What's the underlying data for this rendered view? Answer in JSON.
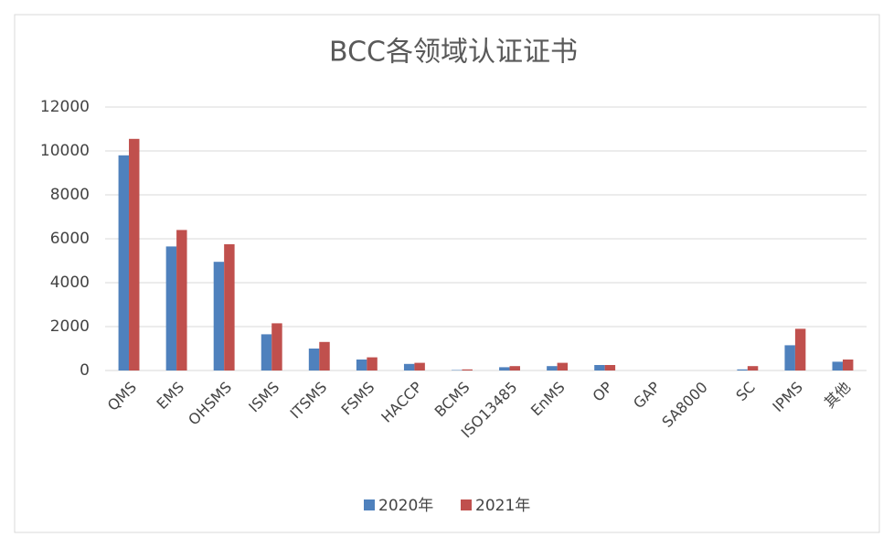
{
  "chart_data": {
    "type": "bar",
    "title": "BCC各领域认证证书",
    "categories": [
      "QMS",
      "EMS",
      "OHSMS",
      "ISMS",
      "ITSMS",
      "FSMS",
      "HACCP",
      "BCMS",
      "ISO13485",
      "EnMS",
      "OP",
      "GAP",
      "SA8000",
      "SC",
      "IPMS",
      "其他"
    ],
    "series": [
      {
        "name": "2020年",
        "color": "#4f81bd",
        "values": [
          9800,
          5650,
          4950,
          1650,
          1000,
          500,
          300,
          20,
          150,
          200,
          250,
          0,
          0,
          50,
          1150,
          400
        ]
      },
      {
        "name": "2021年",
        "color": "#c0504d",
        "values": [
          10550,
          6400,
          5750,
          2150,
          1300,
          600,
          350,
          50,
          200,
          350,
          250,
          0,
          0,
          200,
          1900,
          500
        ]
      }
    ],
    "ylim": [
      0,
      12000
    ],
    "yticks": [
      0,
      2000,
      4000,
      6000,
      8000,
      10000,
      12000
    ],
    "grid": true,
    "legend": "bottom"
  }
}
